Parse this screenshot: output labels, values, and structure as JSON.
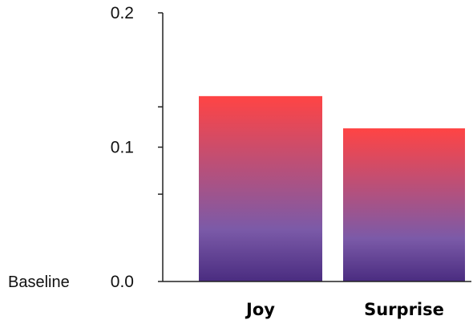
{
  "chart_data": {
    "type": "bar",
    "categories": [
      "Joy",
      "Surprise"
    ],
    "values": [
      0.138,
      0.114
    ],
    "ylim": [
      0,
      0.2
    ],
    "y_ticks": [
      {
        "value": 0.0,
        "label": "0.0"
      },
      {
        "value": 0.1,
        "label": "0.1"
      },
      {
        "value": 0.2,
        "label": "0.2"
      }
    ],
    "minor_ticks": [
      0.065,
      0.13
    ],
    "baseline_label": "Baseline",
    "title": "",
    "xlabel": "",
    "ylabel": "",
    "grid": false,
    "bar_gradient": {
      "top": "#ff4444",
      "middle": "#7b5aa8",
      "bottom": "#4a2c80"
    },
    "axis_color": "#222222"
  }
}
